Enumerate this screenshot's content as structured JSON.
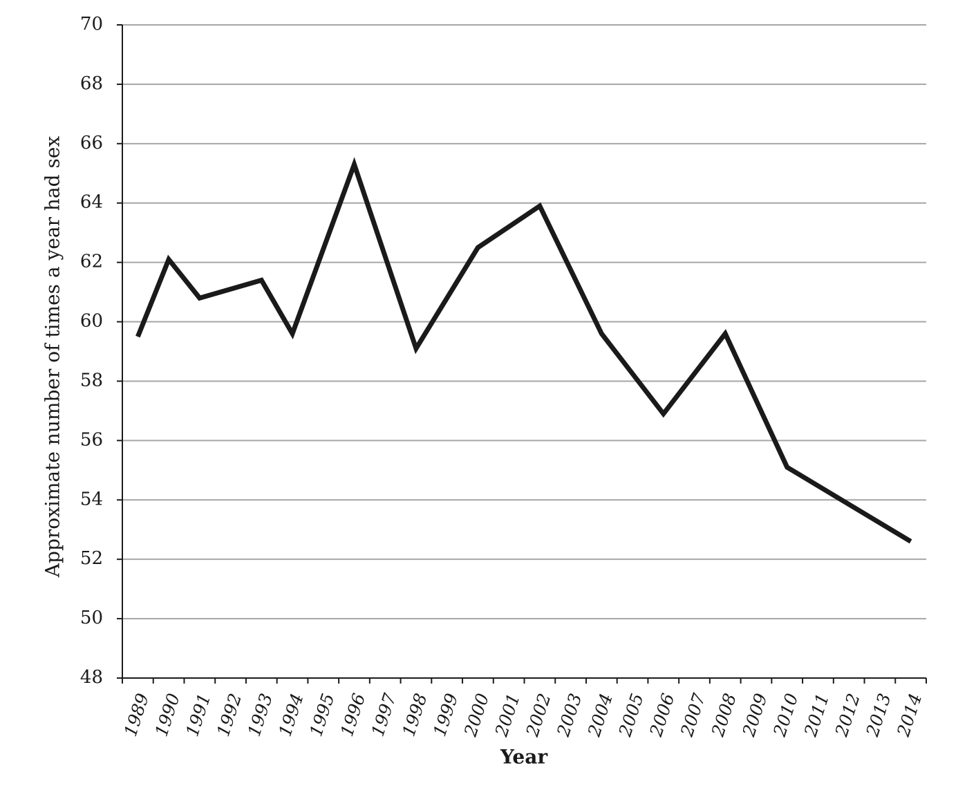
{
  "chart_data": {
    "type": "line",
    "y_label": "Approximate number of times a year had sex",
    "x_label": "Year",
    "x": [
      1989,
      1990,
      1991,
      1993,
      1994,
      1996,
      1998,
      2000,
      2002,
      2004,
      2006,
      2008,
      2010,
      2014
    ],
    "series": [
      {
        "color": "#1a1a1a",
        "values": [
          59.5,
          62.1,
          60.8,
          61.4,
          59.6,
          65.3,
          59.1,
          62.5,
          63.9,
          59.6,
          56.9,
          59.6,
          55.1,
          52.6
        ]
      }
    ],
    "xlim": [
      1988.5,
      2014.5
    ],
    "xticks": [
      1989,
      1990,
      1991,
      1992,
      1993,
      1994,
      1995,
      1996,
      1997,
      1998,
      1999,
      2000,
      2001,
      2002,
      2003,
      2004,
      2005,
      2006,
      2007,
      2008,
      2009,
      2010,
      2011,
      2012,
      2013,
      2014
    ],
    "ylim": [
      48,
      70
    ],
    "yticks": [
      48,
      50,
      52,
      54,
      56,
      58,
      60,
      62,
      64,
      66,
      68,
      70
    ],
    "grid": true
  }
}
